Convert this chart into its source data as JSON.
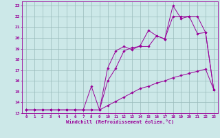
{
  "xlabel": "Windchill (Refroidissement éolien,°C)",
  "background_color": "#cce8e8",
  "grid_color": "#99bbbb",
  "line_color": "#990099",
  "xlim": [
    -0.5,
    23.5
  ],
  "ylim": [
    13,
    23.4
  ],
  "xticks": [
    0,
    1,
    2,
    3,
    4,
    5,
    6,
    7,
    8,
    9,
    10,
    11,
    12,
    13,
    14,
    15,
    16,
    17,
    18,
    19,
    20,
    21,
    22,
    23
  ],
  "yticks": [
    13,
    14,
    15,
    16,
    17,
    18,
    19,
    20,
    21,
    22,
    23
  ],
  "line1_x": [
    0,
    1,
    2,
    3,
    4,
    5,
    6,
    7,
    8,
    9,
    10,
    11,
    12,
    13,
    14,
    15,
    16,
    17,
    18,
    19,
    20,
    21,
    22,
    23
  ],
  "line1_y": [
    13.3,
    13.3,
    13.3,
    13.3,
    13.3,
    13.3,
    13.3,
    13.3,
    13.3,
    13.3,
    13.7,
    14.1,
    14.5,
    14.9,
    15.3,
    15.5,
    15.8,
    16.0,
    16.3,
    16.5,
    16.7,
    16.9,
    17.1,
    15.2
  ],
  "line2_x": [
    0,
    1,
    2,
    3,
    4,
    5,
    6,
    7,
    8,
    9,
    10,
    11,
    12,
    13,
    14,
    15,
    16,
    17,
    18,
    19,
    20,
    21,
    22,
    23
  ],
  "line2_y": [
    13.3,
    13.3,
    13.3,
    13.3,
    13.3,
    13.3,
    13.3,
    13.3,
    13.3,
    13.3,
    16.0,
    17.2,
    18.8,
    19.1,
    19.2,
    19.2,
    20.2,
    19.9,
    22.0,
    22.0,
    22.0,
    22.0,
    20.5,
    15.2
  ],
  "line3_x": [
    0,
    1,
    2,
    3,
    4,
    5,
    6,
    7,
    8,
    9,
    10,
    11,
    12,
    13,
    14,
    15,
    16,
    17,
    18,
    19,
    20,
    21,
    22,
    23
  ],
  "line3_y": [
    13.3,
    13.3,
    13.3,
    13.3,
    13.3,
    13.3,
    13.3,
    13.3,
    15.5,
    13.3,
    17.2,
    18.8,
    19.2,
    18.9,
    19.3,
    20.7,
    20.2,
    19.9,
    23.0,
    21.8,
    22.0,
    20.4,
    20.5,
    15.2
  ]
}
